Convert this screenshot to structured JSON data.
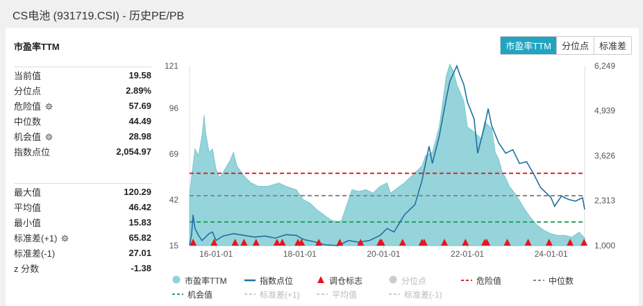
{
  "page_title": "CS电池 (931719.CSI) - 历史PE/PB",
  "card_title": "市盈率TTM",
  "tabs": [
    {
      "label": "市盈率TTM",
      "active": true
    },
    {
      "label": "分位点",
      "active": false
    },
    {
      "label": "标准差",
      "active": false
    }
  ],
  "stats_top": [
    {
      "label": "当前值",
      "value": "19.58",
      "gear": false
    },
    {
      "label": "分位点",
      "value": "2.89%",
      "gear": false
    },
    {
      "label": "危险值",
      "value": "57.69",
      "gear": true
    },
    {
      "label": "中位数",
      "value": "44.49",
      "gear": false
    },
    {
      "label": "机会值",
      "value": "28.98",
      "gear": true
    },
    {
      "label": "指数点位",
      "value": "2,054.97",
      "gear": false
    }
  ],
  "stats_bottom": [
    {
      "label": "最大值",
      "value": "120.29",
      "gear": false
    },
    {
      "label": "平均值",
      "value": "46.42",
      "gear": false
    },
    {
      "label": "最小值",
      "value": "15.83",
      "gear": false
    },
    {
      "label": "标准差(+1)",
      "value": "65.82",
      "gear": true
    },
    {
      "label": "标准差(-1)",
      "value": "27.01",
      "gear": false
    },
    {
      "label": "z 分数",
      "value": "-1.38",
      "gear": false
    }
  ],
  "legend": [
    {
      "label": "市盈率TTM",
      "type": "dot",
      "color": "#8fd2d8",
      "dim": false
    },
    {
      "label": "指数点位",
      "type": "line",
      "color": "#1f6fa0",
      "dim": false
    },
    {
      "label": "调仓标志",
      "type": "triangle",
      "color": "#e8141e",
      "dim": false
    },
    {
      "label": "分位点",
      "type": "dot",
      "color": "#cccccc",
      "dim": true
    },
    {
      "label": "危险值",
      "type": "dash",
      "color": "#d9232d",
      "dim": false
    },
    {
      "label": "中位数",
      "type": "dash",
      "color": "#888888",
      "dim": false
    },
    {
      "label": "机会值",
      "type": "dash",
      "color": "#23a05a",
      "dim": false
    },
    {
      "label": "标准差(+1)",
      "type": "dash",
      "color": "#cccccc",
      "dim": true
    },
    {
      "label": "平均值",
      "type": "dash",
      "color": "#cccccc",
      "dim": true
    },
    {
      "label": "标准差(-1)",
      "type": "dash",
      "color": "#cccccc",
      "dim": true
    }
  ],
  "chart_data": {
    "type": "area",
    "x_ticks": [
      "16-01-01",
      "18-01-01",
      "20-01-01",
      "22-01-01",
      "24-01-01"
    ],
    "x_tick_dates": [
      "2016-01-01",
      "2018-01-01",
      "2020-01-01",
      "2022-01-01",
      "2024-01-01"
    ],
    "x_range": [
      "2015-05-15",
      "2024-10-20"
    ],
    "y_left_ticks": [
      "121",
      "96",
      "69",
      "42",
      "15"
    ],
    "y_left_range": [
      15,
      121
    ],
    "y_right_ticks": [
      "6,249",
      "4,939",
      "3,626",
      "2,313",
      "1,000"
    ],
    "y_right_range": [
      1000,
      6249
    ],
    "reference_lines": {
      "danger": 57.69,
      "median": 44.49,
      "opportunity": 28.98
    },
    "pe_series": {
      "name": "市盈率TTM",
      "points": [
        [
          "2015-05-15",
          45
        ],
        [
          "2015-06-01",
          55
        ],
        [
          "2015-07-01",
          72
        ],
        [
          "2015-08-01",
          68
        ],
        [
          "2015-09-01",
          80
        ],
        [
          "2015-09-20",
          92
        ],
        [
          "2015-10-01",
          82
        ],
        [
          "2015-11-01",
          70
        ],
        [
          "2015-12-01",
          72
        ],
        [
          "2016-01-01",
          60
        ],
        [
          "2016-02-01",
          55
        ],
        [
          "2016-03-01",
          58
        ],
        [
          "2016-05-01",
          65
        ],
        [
          "2016-06-01",
          70
        ],
        [
          "2016-07-01",
          62
        ],
        [
          "2016-09-01",
          56
        ],
        [
          "2016-11-01",
          52
        ],
        [
          "2017-01-01",
          50
        ],
        [
          "2017-04-01",
          50
        ],
        [
          "2017-07-01",
          52
        ],
        [
          "2017-09-01",
          50
        ],
        [
          "2017-12-01",
          48
        ],
        [
          "2018-02-01",
          42
        ],
        [
          "2018-04-01",
          40
        ],
        [
          "2018-06-01",
          36
        ],
        [
          "2018-08-01",
          33
        ],
        [
          "2018-10-01",
          30
        ],
        [
          "2018-12-01",
          29
        ],
        [
          "2019-01-01",
          30
        ],
        [
          "2019-03-01",
          42
        ],
        [
          "2019-04-01",
          48
        ],
        [
          "2019-06-01",
          47
        ],
        [
          "2019-08-01",
          48
        ],
        [
          "2019-10-01",
          46
        ],
        [
          "2019-12-01",
          50
        ],
        [
          "2020-02-01",
          52
        ],
        [
          "2020-03-01",
          46
        ],
        [
          "2020-05-01",
          49
        ],
        [
          "2020-07-01",
          52
        ],
        [
          "2020-09-01",
          56
        ],
        [
          "2020-11-01",
          60
        ],
        [
          "2020-12-01",
          62
        ],
        [
          "2021-01-01",
          68
        ],
        [
          "2021-03-01",
          70
        ],
        [
          "2021-05-01",
          85
        ],
        [
          "2021-06-01",
          100
        ],
        [
          "2021-07-01",
          115
        ],
        [
          "2021-08-01",
          122
        ],
        [
          "2021-09-01",
          118
        ],
        [
          "2021-10-01",
          110
        ],
        [
          "2021-11-01",
          105
        ],
        [
          "2021-12-01",
          100
        ],
        [
          "2022-01-01",
          85
        ],
        [
          "2022-03-01",
          82
        ],
        [
          "2022-05-01",
          78
        ],
        [
          "2022-06-01",
          88
        ],
        [
          "2022-07-01",
          86
        ],
        [
          "2022-08-01",
          84
        ],
        [
          "2022-09-01",
          70
        ],
        [
          "2022-10-01",
          66
        ],
        [
          "2022-11-01",
          58
        ],
        [
          "2022-12-01",
          55
        ],
        [
          "2023-01-01",
          50
        ],
        [
          "2023-03-01",
          45
        ],
        [
          "2023-05-01",
          38
        ],
        [
          "2023-07-01",
          32
        ],
        [
          "2023-09-01",
          27
        ],
        [
          "2023-11-01",
          24
        ],
        [
          "2024-01-01",
          22
        ],
        [
          "2024-03-01",
          21
        ],
        [
          "2024-05-01",
          21
        ],
        [
          "2024-07-01",
          20
        ],
        [
          "2024-09-01",
          23
        ],
        [
          "2024-10-20",
          19.58
        ]
      ]
    },
    "index_series": {
      "name": "指数点位",
      "points": [
        [
          "2015-05-15",
          1020
        ],
        [
          "2015-06-01",
          1300
        ],
        [
          "2015-06-15",
          1900
        ],
        [
          "2015-07-01",
          1500
        ],
        [
          "2015-08-01",
          1300
        ],
        [
          "2015-09-01",
          1150
        ],
        [
          "2015-10-01",
          1250
        ],
        [
          "2015-11-01",
          1350
        ],
        [
          "2015-12-01",
          1400
        ],
        [
          "2016-01-01",
          1150
        ],
        [
          "2016-03-01",
          1280
        ],
        [
          "2016-06-01",
          1350
        ],
        [
          "2016-09-01",
          1300
        ],
        [
          "2016-12-01",
          1250
        ],
        [
          "2017-03-01",
          1280
        ],
        [
          "2017-06-01",
          1220
        ],
        [
          "2017-09-01",
          1320
        ],
        [
          "2017-12-01",
          1300
        ],
        [
          "2018-02-01",
          1180
        ],
        [
          "2018-05-01",
          1120
        ],
        [
          "2018-08-01",
          1030
        ],
        [
          "2018-12-01",
          1000
        ],
        [
          "2019-03-01",
          1150
        ],
        [
          "2019-06-01",
          1100
        ],
        [
          "2019-09-01",
          1150
        ],
        [
          "2019-12-01",
          1300
        ],
        [
          "2020-02-01",
          1500
        ],
        [
          "2020-04-01",
          1400
        ],
        [
          "2020-07-01",
          1900
        ],
        [
          "2020-10-01",
          2200
        ],
        [
          "2020-12-01",
          2900
        ],
        [
          "2021-02-01",
          3900
        ],
        [
          "2021-03-01",
          3400
        ],
        [
          "2021-05-01",
          4200
        ],
        [
          "2021-07-01",
          5300
        ],
        [
          "2021-08-01",
          5800
        ],
        [
          "2021-10-01",
          6249
        ],
        [
          "2021-11-01",
          5950
        ],
        [
          "2021-12-01",
          5700
        ],
        [
          "2022-01-01",
          5200
        ],
        [
          "2022-03-01",
          4700
        ],
        [
          "2022-04-01",
          3700
        ],
        [
          "2022-06-01",
          4500
        ],
        [
          "2022-07-01",
          5000
        ],
        [
          "2022-08-01",
          4500
        ],
        [
          "2022-10-01",
          4000
        ],
        [
          "2022-12-01",
          3700
        ],
        [
          "2023-02-01",
          3800
        ],
        [
          "2023-04-01",
          3400
        ],
        [
          "2023-06-01",
          3450
        ],
        [
          "2023-08-01",
          3100
        ],
        [
          "2023-10-01",
          2700
        ],
        [
          "2024-01-01",
          2400
        ],
        [
          "2024-02-01",
          2150
        ],
        [
          "2024-04-01",
          2450
        ],
        [
          "2024-06-01",
          2350
        ],
        [
          "2024-08-01",
          2300
        ],
        [
          "2024-10-01",
          2400
        ],
        [
          "2024-10-20",
          2054.97
        ]
      ]
    },
    "rebalance_markers": [
      "2015-06-15",
      "2015-12-15",
      "2016-06-15",
      "2016-09-01",
      "2016-12-15",
      "2017-06-15",
      "2017-08-01",
      "2017-12-15",
      "2018-01-15",
      "2018-06-15",
      "2018-12-15",
      "2019-06-15",
      "2019-12-01",
      "2019-12-15",
      "2020-06-15",
      "2020-12-01",
      "2020-12-20",
      "2021-06-15",
      "2021-12-15",
      "2022-06-01",
      "2022-06-20",
      "2022-12-15",
      "2023-06-15",
      "2023-12-15",
      "2024-06-15",
      "2024-10-15"
    ]
  }
}
